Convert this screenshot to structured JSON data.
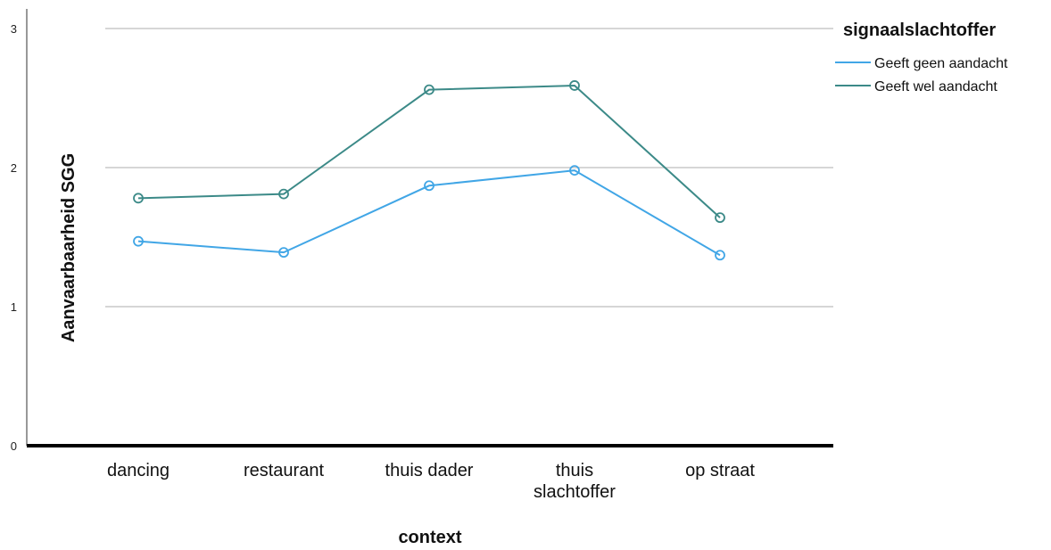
{
  "chart_data": {
    "type": "line",
    "xlabel": "context",
    "ylabel": "Aanvaarbaarheid  SGG",
    "ylim": [
      0,
      3
    ],
    "yticks": [
      "0",
      "1",
      "2",
      "3"
    ],
    "grid": true,
    "categories": [
      "dancing",
      "restaurant",
      "thuis dader",
      "thuis slachtoffer",
      "op straat"
    ],
    "category_lines": [
      [
        "dancing"
      ],
      [
        "restaurant"
      ],
      [
        "thuis dader"
      ],
      [
        "thuis",
        "slachtoffer"
      ],
      [
        "op straat"
      ]
    ],
    "legend": {
      "title": "signaalslachtoffer",
      "placement": "top-right"
    },
    "series": [
      {
        "name": "Geeft geen aandacht",
        "color": "#41a6e6",
        "values": [
          1.47,
          1.39,
          1.87,
          1.98,
          1.37
        ]
      },
      {
        "name": "Geeft wel aandacht",
        "color": "#3c8a88",
        "values": [
          1.78,
          1.81,
          2.56,
          2.59,
          1.64
        ]
      }
    ]
  }
}
